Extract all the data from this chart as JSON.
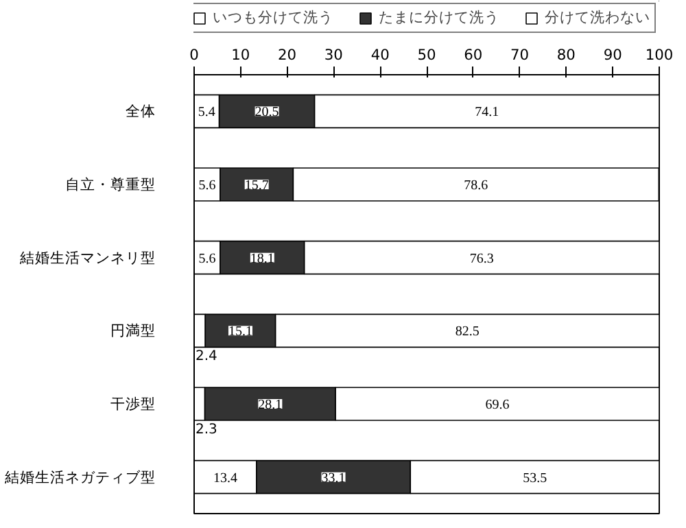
{
  "chart_data": {
    "type": "bar",
    "orientation": "horizontal",
    "stacked": true,
    "data_labels": true,
    "legend": "top",
    "grid": false,
    "categories": [
      "全体",
      "自立・尊重型",
      "結婚生活マンネリ型",
      "円満型",
      "干渉型",
      "結婚生活ネガティブ型"
    ],
    "xlim": [
      0,
      100
    ],
    "xticks": [
      0,
      10,
      20,
      30,
      40,
      50,
      60,
      70,
      80,
      90,
      100
    ],
    "series": [
      {
        "name": "いつも分けて洗う",
        "color": "#ffffff",
        "values": [
          5.4,
          5.6,
          5.6,
          2.4,
          2.3,
          13.4
        ]
      },
      {
        "name": "たまに分けて洗う",
        "color": "#333333",
        "values": [
          20.5,
          15.7,
          18.1,
          15.1,
          28.1,
          33.1
        ]
      },
      {
        "name": "分けて洗わない",
        "color": "#ffffff",
        "values": [
          74.1,
          78.6,
          76.3,
          82.5,
          69.6,
          53.5
        ]
      }
    ]
  }
}
